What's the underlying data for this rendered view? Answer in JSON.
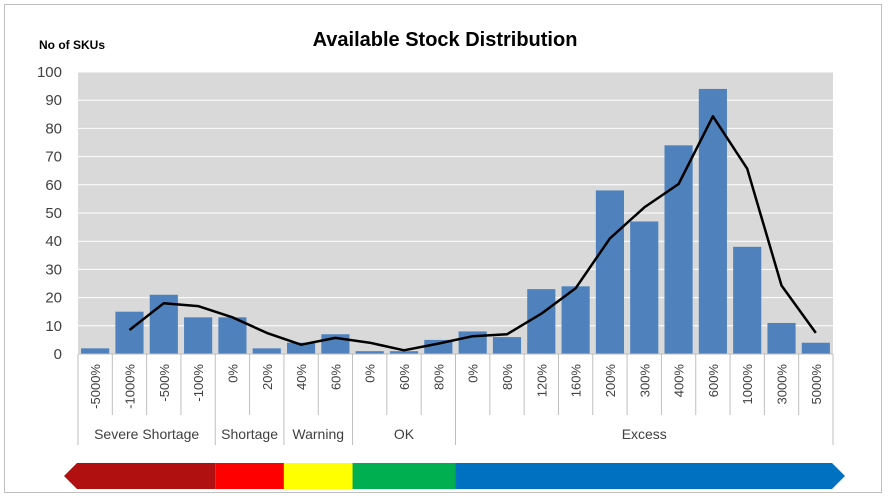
{
  "chart_data": {
    "type": "bar",
    "title": "Available Stock Distribution",
    "ylabel": "No of SKUs",
    "xlabel": "",
    "ylim": [
      0,
      100
    ],
    "yticks": [
      0,
      10,
      20,
      30,
      40,
      50,
      60,
      70,
      80,
      90,
      100
    ],
    "grid": true,
    "categories": [
      "-5000%",
      "-1000%",
      "-500%",
      "-100%",
      "0%",
      "20%",
      "40%",
      "60%",
      "0%",
      "60%",
      "80%",
      "0%",
      "80%",
      "120%",
      "160%",
      "200%",
      "300%",
      "400%",
      "600%",
      "1000%",
      "3000%",
      "5000%"
    ],
    "groups": [
      {
        "label": "Severe Shortage",
        "count": 4,
        "color": "#b01010"
      },
      {
        "label": "Shortage",
        "count": 2,
        "color": "#ff0000"
      },
      {
        "label": "Warning",
        "count": 2,
        "color": "#ffff00"
      },
      {
        "label": "OK",
        "count": 3,
        "color": "#00b050"
      },
      {
        "label": "Excess",
        "count": 11,
        "color": "#0070c0"
      }
    ],
    "series": [
      {
        "type": "bar",
        "color": "#4f81bd",
        "values": [
          2,
          15,
          21,
          13,
          13,
          2,
          4,
          7,
          1,
          1,
          5,
          8,
          6,
          23,
          24,
          58,
          47,
          74,
          94,
          38,
          11,
          4
        ]
      },
      {
        "type": "line",
        "color": "#000000",
        "values": [
          null,
          8.5,
          18,
          17,
          13,
          7.5,
          3.3,
          5.7,
          4,
          1.3,
          3.7,
          6.3,
          7,
          14.3,
          23.3,
          41,
          52,
          60.3,
          84.3,
          65.7,
          24.3,
          7.5
        ]
      }
    ]
  }
}
